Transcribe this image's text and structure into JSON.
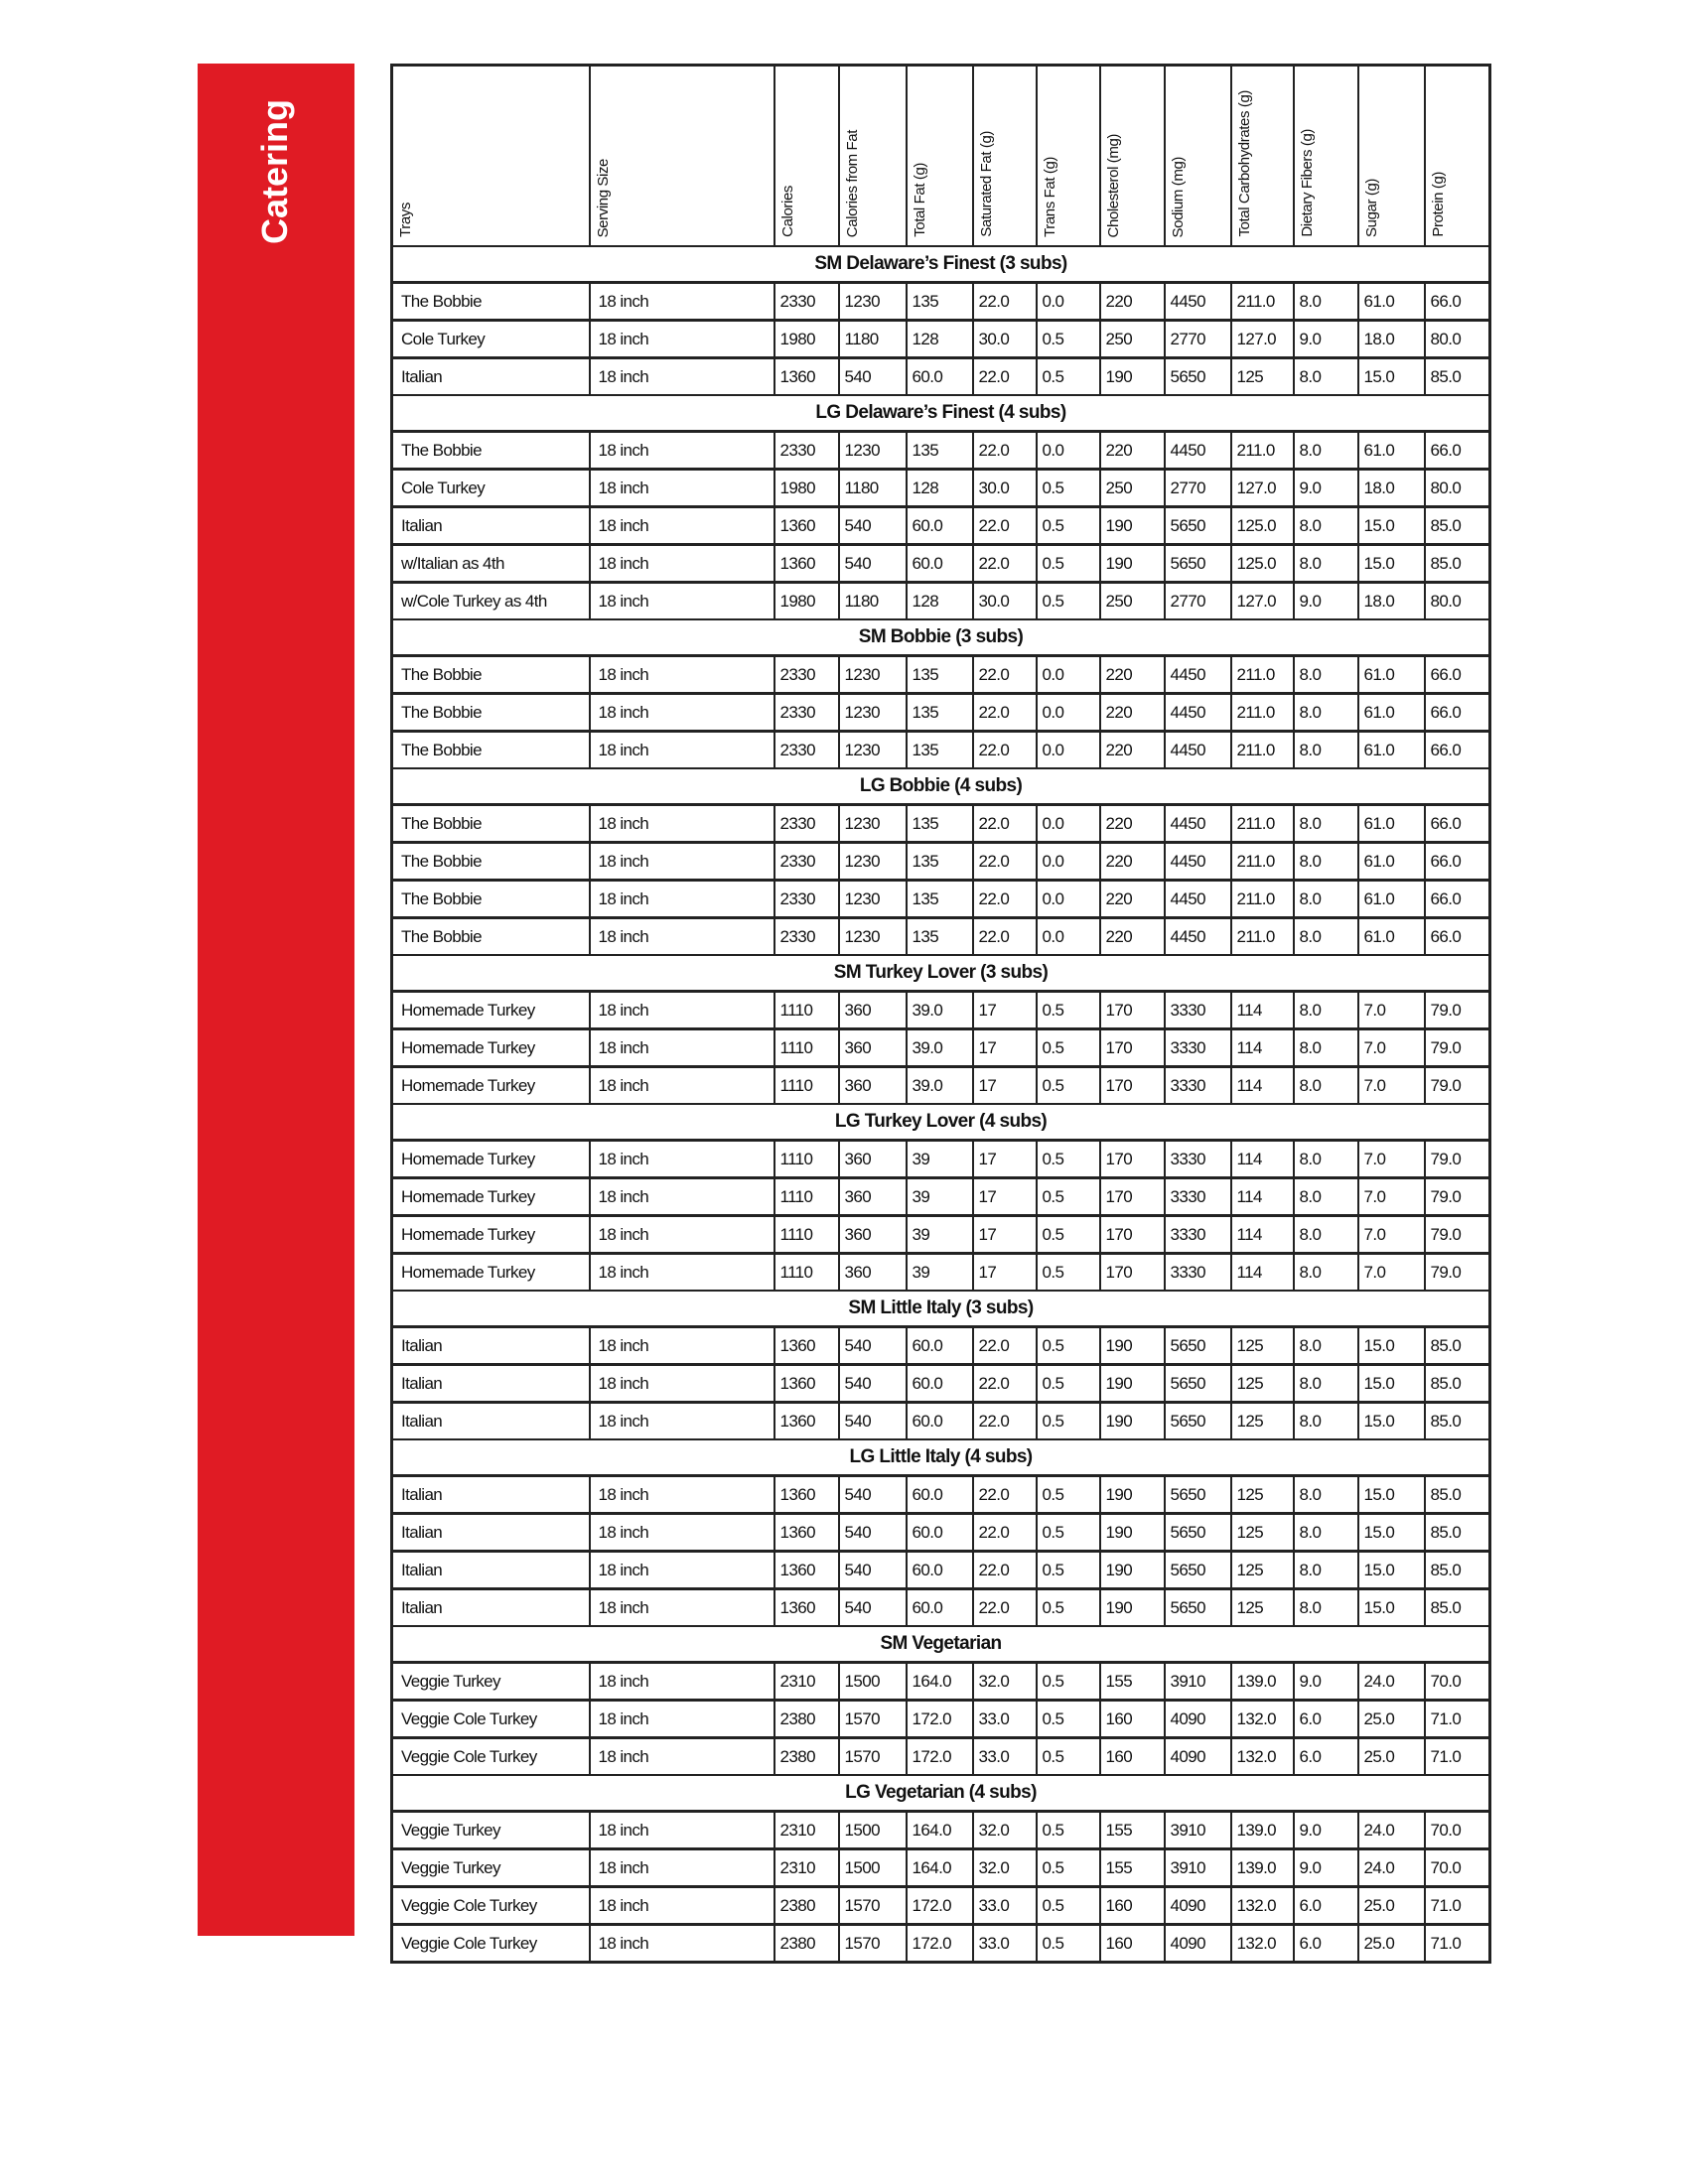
{
  "sidebar": {
    "title": "Catering",
    "color": "#e01b24"
  },
  "columns": [
    "Trays",
    "Serving Size",
    "Calories",
    "Calories from Fat",
    "Total Fat (g)",
    "Saturated Fat (g)",
    "Trans Fat (g)",
    "Cholesterol (mg)",
    "Sodium (mg)",
    "Total Carbohydrates (g)",
    "Dietary Fibers (g)",
    "Sugar (g)",
    "Protein (g)"
  ],
  "sections": [
    {
      "title": "SM Delaware’s Finest (3 subs)",
      "rows": [
        [
          "The Bobbie",
          "18 inch",
          "2330",
          "1230",
          "135",
          "22.0",
          "0.0",
          "220",
          "4450",
          "211.0",
          "8.0",
          "61.0",
          "66.0"
        ],
        [
          "Cole Turkey",
          "18 inch",
          "1980",
          "1180",
          "128",
          "30.0",
          "0.5",
          "250",
          "2770",
          "127.0",
          "9.0",
          "18.0",
          "80.0"
        ],
        [
          "Italian",
          "18 inch",
          "1360",
          "540",
          "60.0",
          "22.0",
          "0.5",
          "190",
          "5650",
          "125",
          "8.0",
          "15.0",
          "85.0"
        ]
      ]
    },
    {
      "title": "LG Delaware’s Finest (4 subs)",
      "rows": [
        [
          "The Bobbie",
          "18 inch",
          "2330",
          "1230",
          "135",
          "22.0",
          "0.0",
          "220",
          "4450",
          "211.0",
          "8.0",
          "61.0",
          "66.0"
        ],
        [
          "Cole Turkey",
          "18 inch",
          "1980",
          "1180",
          "128",
          "30.0",
          "0.5",
          "250",
          "2770",
          "127.0",
          "9.0",
          "18.0",
          "80.0"
        ],
        [
          "Italian",
          "18 inch",
          "1360",
          "540",
          "60.0",
          "22.0",
          "0.5",
          "190",
          "5650",
          "125.0",
          "8.0",
          "15.0",
          "85.0"
        ],
        [
          "w/Italian as 4th",
          "18 inch",
          "1360",
          "540",
          "60.0",
          "22.0",
          "0.5",
          "190",
          "5650",
          "125.0",
          "8.0",
          "15.0",
          "85.0"
        ],
        [
          "w/Cole Turkey as 4th",
          "18 inch",
          "1980",
          "1180",
          "128",
          "30.0",
          "0.5",
          "250",
          "2770",
          "127.0",
          "9.0",
          "18.0",
          "80.0"
        ]
      ]
    },
    {
      "title": "SM Bobbie (3 subs)",
      "rows": [
        [
          "The Bobbie",
          "18 inch",
          "2330",
          "1230",
          "135",
          "22.0",
          "0.0",
          "220",
          "4450",
          "211.0",
          "8.0",
          "61.0",
          "66.0"
        ],
        [
          "The Bobbie",
          "18 inch",
          "2330",
          "1230",
          "135",
          "22.0",
          "0.0",
          "220",
          "4450",
          "211.0",
          "8.0",
          "61.0",
          "66.0"
        ],
        [
          "The Bobbie",
          "18 inch",
          "2330",
          "1230",
          "135",
          "22.0",
          "0.0",
          "220",
          "4450",
          "211.0",
          "8.0",
          "61.0",
          "66.0"
        ]
      ]
    },
    {
      "title": "LG Bobbie (4 subs)",
      "rows": [
        [
          "The Bobbie",
          "18 inch",
          "2330",
          "1230",
          "135",
          "22.0",
          "0.0",
          "220",
          "4450",
          "211.0",
          "8.0",
          "61.0",
          "66.0"
        ],
        [
          "The Bobbie",
          "18 inch",
          "2330",
          "1230",
          "135",
          "22.0",
          "0.0",
          "220",
          "4450",
          "211.0",
          "8.0",
          "61.0",
          "66.0"
        ],
        [
          "The Bobbie",
          "18 inch",
          "2330",
          "1230",
          "135",
          "22.0",
          "0.0",
          "220",
          "4450",
          "211.0",
          "8.0",
          "61.0",
          "66.0"
        ],
        [
          "The Bobbie",
          "18 inch",
          "2330",
          "1230",
          "135",
          "22.0",
          "0.0",
          "220",
          "4450",
          "211.0",
          "8.0",
          "61.0",
          "66.0"
        ]
      ]
    },
    {
      "title": "SM Turkey Lover (3 subs)",
      "rows": [
        [
          "Homemade Turkey",
          "18 inch",
          "1110",
          "360",
          "39.0",
          "17",
          "0.5",
          "170",
          "3330",
          "114",
          "8.0",
          "7.0",
          "79.0"
        ],
        [
          "Homemade Turkey",
          "18 inch",
          "1110",
          "360",
          "39.0",
          "17",
          "0.5",
          "170",
          "3330",
          "114",
          "8.0",
          "7.0",
          "79.0"
        ],
        [
          "Homemade Turkey",
          "18 inch",
          "1110",
          "360",
          "39.0",
          "17",
          "0.5",
          "170",
          "3330",
          "114",
          "8.0",
          "7.0",
          "79.0"
        ]
      ]
    },
    {
      "title": "LG Turkey Lover (4 subs)",
      "rows": [
        [
          "Homemade Turkey",
          "18 inch",
          "1110",
          "360",
          "39",
          "17",
          "0.5",
          "170",
          "3330",
          "114",
          "8.0",
          "7.0",
          "79.0"
        ],
        [
          "Homemade Turkey",
          "18 inch",
          "1110",
          "360",
          "39",
          "17",
          "0.5",
          "170",
          "3330",
          "114",
          "8.0",
          "7.0",
          "79.0"
        ],
        [
          "Homemade Turkey",
          "18 inch",
          "1110",
          "360",
          "39",
          "17",
          "0.5",
          "170",
          "3330",
          "114",
          "8.0",
          "7.0",
          "79.0"
        ],
        [
          "Homemade Turkey",
          "18 inch",
          "1110",
          "360",
          "39",
          "17",
          "0.5",
          "170",
          "3330",
          "114",
          "8.0",
          "7.0",
          "79.0"
        ]
      ]
    },
    {
      "title": "SM Little Italy (3 subs)",
      "rows": [
        [
          "Italian",
          "18 inch",
          "1360",
          "540",
          "60.0",
          "22.0",
          "0.5",
          "190",
          "5650",
          "125",
          "8.0",
          "15.0",
          "85.0"
        ],
        [
          "Italian",
          "18 inch",
          "1360",
          "540",
          "60.0",
          "22.0",
          "0.5",
          "190",
          "5650",
          "125",
          "8.0",
          "15.0",
          "85.0"
        ],
        [
          "Italian",
          "18 inch",
          "1360",
          "540",
          "60.0",
          "22.0",
          "0.5",
          "190",
          "5650",
          "125",
          "8.0",
          "15.0",
          "85.0"
        ]
      ]
    },
    {
      "title": "LG Little Italy (4 subs)",
      "rows": [
        [
          "Italian",
          "18 inch",
          "1360",
          "540",
          "60.0",
          "22.0",
          "0.5",
          "190",
          "5650",
          "125",
          "8.0",
          "15.0",
          "85.0"
        ],
        [
          "Italian",
          "18 inch",
          "1360",
          "540",
          "60.0",
          "22.0",
          "0.5",
          "190",
          "5650",
          "125",
          "8.0",
          "15.0",
          "85.0"
        ],
        [
          "Italian",
          "18 inch",
          "1360",
          "540",
          "60.0",
          "22.0",
          "0.5",
          "190",
          "5650",
          "125",
          "8.0",
          "15.0",
          "85.0"
        ],
        [
          "Italian",
          "18 inch",
          "1360",
          "540",
          "60.0",
          "22.0",
          "0.5",
          "190",
          "5650",
          "125",
          "8.0",
          "15.0",
          "85.0"
        ]
      ]
    },
    {
      "title": "SM Vegetarian",
      "rows": [
        [
          "Veggie Turkey",
          "18 inch",
          "2310",
          "1500",
          "164.0",
          "32.0",
          "0.5",
          "155",
          "3910",
          "139.0",
          "9.0",
          "24.0",
          "70.0"
        ],
        [
          "Veggie Cole Turkey",
          "18 inch",
          "2380",
          "1570",
          "172.0",
          "33.0",
          "0.5",
          "160",
          "4090",
          "132.0",
          "6.0",
          "25.0",
          "71.0"
        ],
        [
          "Veggie Cole Turkey",
          "18 inch",
          "2380",
          "1570",
          "172.0",
          "33.0",
          "0.5",
          "160",
          "4090",
          "132.0",
          "6.0",
          "25.0",
          "71.0"
        ]
      ]
    },
    {
      "title": "LG Vegetarian (4 subs)",
      "rows": [
        [
          "Veggie Turkey",
          "18 inch",
          "2310",
          "1500",
          "164.0",
          "32.0",
          "0.5",
          "155",
          "3910",
          "139.0",
          "9.0",
          "24.0",
          "70.0"
        ],
        [
          "Veggie  Turkey",
          "18 inch",
          "2310",
          "1500",
          "164.0",
          "32.0",
          "0.5",
          "155",
          "3910",
          "139.0",
          "9.0",
          "24.0",
          "70.0"
        ],
        [
          "Veggie Cole Turkey",
          "18 inch",
          "2380",
          "1570",
          "172.0",
          "33.0",
          "0.5",
          "160",
          "4090",
          "132.0",
          "6.0",
          "25.0",
          "71.0"
        ],
        [
          "Veggie Cole Turkey",
          "18 inch",
          "2380",
          "1570",
          "172.0",
          "33.0",
          "0.5",
          "160",
          "4090",
          "132.0",
          "6.0",
          "25.0",
          "71.0"
        ]
      ]
    }
  ]
}
